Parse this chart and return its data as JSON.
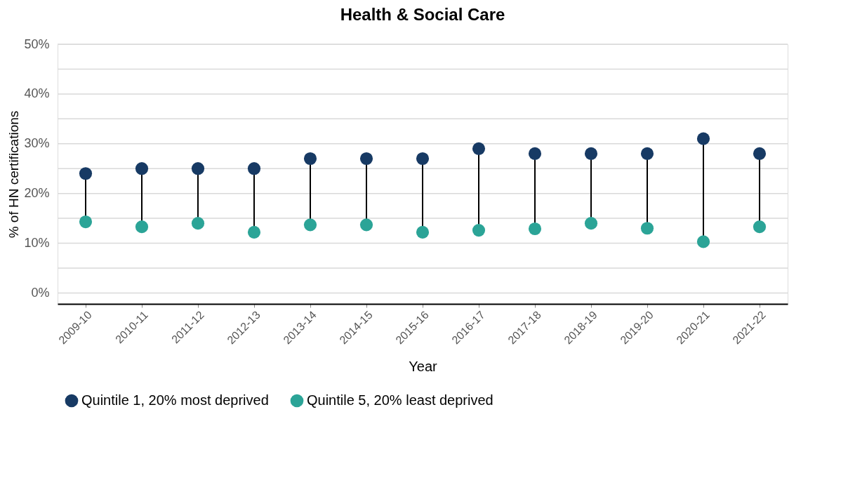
{
  "chart_data": {
    "type": "scatter",
    "title": "Health & Social Care",
    "xlabel": "Year",
    "ylabel": "% of HN certifications",
    "categories": [
      "2009-10",
      "2010-11",
      "2011-12",
      "2012-13",
      "2013-14",
      "2014-15",
      "2015-16",
      "2016-17",
      "2017-18",
      "2018-19",
      "2019-20",
      "2020-21",
      "2021-22"
    ],
    "series": [
      {
        "name": "Quintile 1, 20% most deprived",
        "color": "#173a64",
        "values": [
          24,
          25,
          25,
          25,
          27,
          27,
          27,
          29,
          28,
          28,
          28,
          31,
          28
        ]
      },
      {
        "name": "Quintile 5, 20% least deprived",
        "color": "#2ba497",
        "values": [
          14.3,
          13.3,
          14.0,
          12.2,
          13.7,
          13.7,
          12.2,
          12.6,
          12.9,
          14.0,
          13.0,
          10.3,
          13.3
        ]
      }
    ],
    "ylim": [
      -2.2,
      50
    ],
    "yticks": [
      {
        "value": 0,
        "label": "0%"
      },
      {
        "value": 5,
        "label": null
      },
      {
        "value": 10,
        "label": "10%"
      },
      {
        "value": 15,
        "label": null
      },
      {
        "value": 20,
        "label": "20%"
      },
      {
        "value": 25,
        "label": null
      },
      {
        "value": 30,
        "label": "30%"
      },
      {
        "value": 35,
        "label": null
      },
      {
        "value": 40,
        "label": "40%"
      },
      {
        "value": 45,
        "label": null
      },
      {
        "value": 50,
        "label": "50%"
      }
    ],
    "grid": "y",
    "legend": "bottom",
    "marker": "circle"
  }
}
